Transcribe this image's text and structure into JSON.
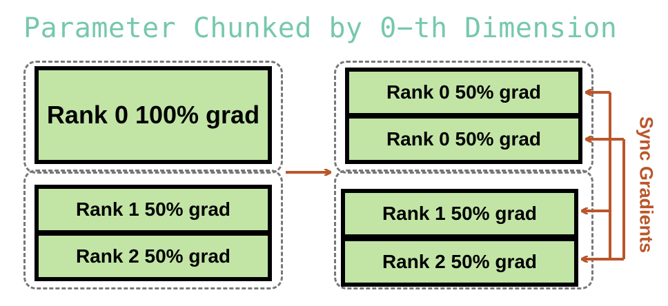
{
  "title": "Parameter Chunked by 0−th Dimension",
  "left_group": {
    "rank0_full": "Rank 0 100% grad",
    "rank1_half": "Rank 1 50% grad",
    "rank2_half": "Rank 2 50% grad"
  },
  "right_group": {
    "rank0_half_a": "Rank 0 50% grad",
    "rank0_half_b": "Rank 0 50% grad",
    "rank1_half": "Rank 1 50% grad",
    "rank2_half": "Rank 2 50% grad"
  },
  "sync_label": "Sync Gradients",
  "colors": {
    "title": "#76c8ad",
    "box_fill": "#c2e5a6",
    "box_border": "#000000",
    "dashed_border": "#777777",
    "arrow": "#b9562a"
  }
}
